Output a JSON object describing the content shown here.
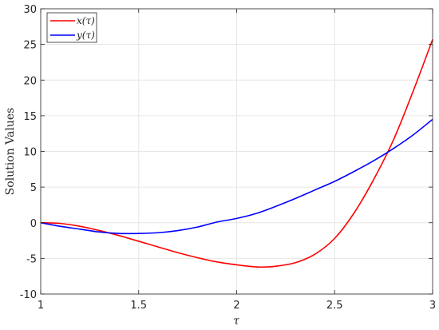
{
  "chart_data": {
    "type": "line",
    "title": "",
    "xlabel": "τ",
    "ylabel": "Solution Values",
    "xlim": [
      1,
      3
    ],
    "ylim": [
      -10,
      30
    ],
    "xticks": [
      1,
      1.5,
      2,
      2.5,
      3
    ],
    "xtick_labels": [
      "1",
      "1.5",
      "2",
      "2.5",
      "3"
    ],
    "yticks": [
      -10,
      -5,
      0,
      5,
      10,
      15,
      20,
      25,
      30
    ],
    "ytick_labels": [
      "-10",
      "-5",
      "0",
      "5",
      "10",
      "15",
      "20",
      "25",
      "30"
    ],
    "grid": true,
    "legend_position": "top-left",
    "series": [
      {
        "name": "x(τ)",
        "color": "#ff0000",
        "x": [
          1.0,
          1.1,
          1.2,
          1.3,
          1.4,
          1.5,
          1.6,
          1.7,
          1.8,
          1.9,
          2.0,
          2.1,
          2.15,
          2.2,
          2.3,
          2.4,
          2.5,
          2.6,
          2.7,
          2.8,
          2.9,
          3.0
        ],
        "y": [
          0.0,
          -0.1,
          -0.5,
          -1.1,
          -1.8,
          -2.6,
          -3.4,
          -4.2,
          -4.9,
          -5.5,
          -5.9,
          -6.2,
          -6.2,
          -6.1,
          -5.6,
          -4.4,
          -2.2,
          1.4,
          6.1,
          11.6,
          18.4,
          25.7
        ]
      },
      {
        "name": "y(τ)",
        "color": "#0000ff",
        "x": [
          1.0,
          1.1,
          1.2,
          1.3,
          1.4,
          1.5,
          1.6,
          1.7,
          1.8,
          1.9,
          2.0,
          2.1,
          2.2,
          2.3,
          2.4,
          2.5,
          2.6,
          2.7,
          2.8,
          2.9,
          3.0
        ],
        "y": [
          0.0,
          -0.5,
          -0.9,
          -1.3,
          -1.5,
          -1.5,
          -1.4,
          -1.1,
          -0.6,
          0.1,
          0.6,
          1.3,
          2.3,
          3.4,
          4.6,
          5.8,
          7.2,
          8.7,
          10.4,
          12.3,
          14.5
        ]
      }
    ]
  }
}
